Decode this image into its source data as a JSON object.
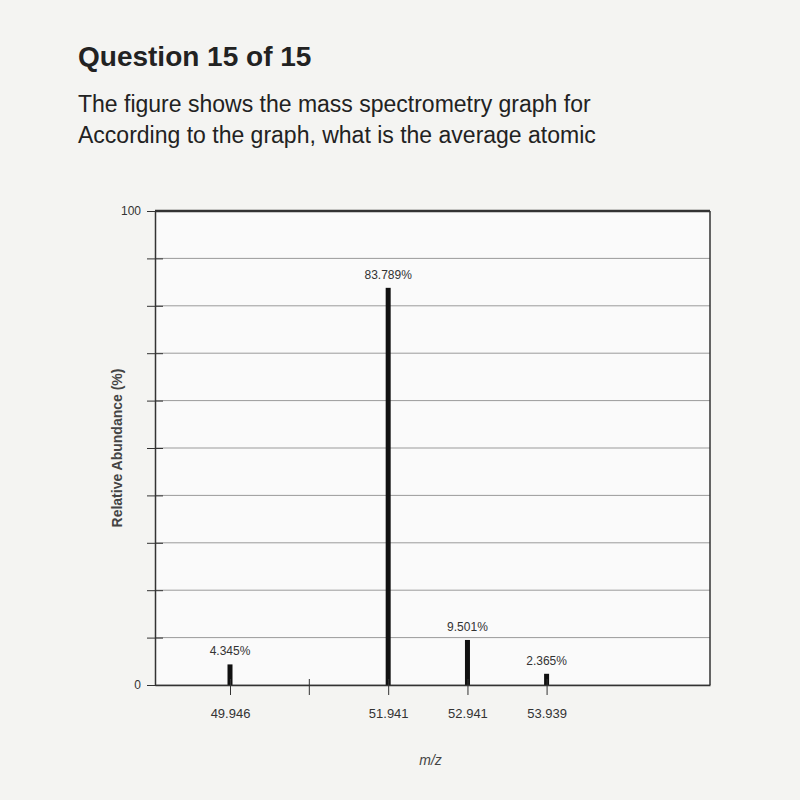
{
  "header": {
    "title": "Question 15 of 15",
    "text": [
      "The figure shows the mass spectrometry graph for",
      "According to the graph, what is the average atomic"
    ]
  },
  "chart_data": {
    "type": "bar",
    "x_label": "m/z",
    "y_label": "Relative Abundance (%)",
    "x": [
      49.946,
      51.941,
      52.941,
      53.939
    ],
    "values": [
      4.345,
      83.789,
      9.501,
      2.365
    ],
    "value_labels": [
      "4.345%",
      "83.789%",
      "9.501%",
      "2.365%"
    ],
    "data_labels": true,
    "color": "#111111",
    "xlim": [
      49.0,
      56.0
    ],
    "xticks": [
      49.946,
      {
        "value": 50.94,
        "label": null
      },
      51.941,
      52.941,
      53.939
    ],
    "ylim": [
      0,
      100
    ],
    "yticks": [
      0,
      {
        "value": 10,
        "label": null
      },
      {
        "value": 20,
        "label": null
      },
      {
        "value": 30,
        "label": null
      },
      {
        "value": 40,
        "label": null
      },
      {
        "value": 50,
        "label": null
      },
      {
        "value": 60,
        "label": null
      },
      {
        "value": 70,
        "label": null
      },
      {
        "value": 80,
        "label": null
      },
      {
        "value": 90,
        "label": null
      },
      100
    ],
    "grid": true
  }
}
